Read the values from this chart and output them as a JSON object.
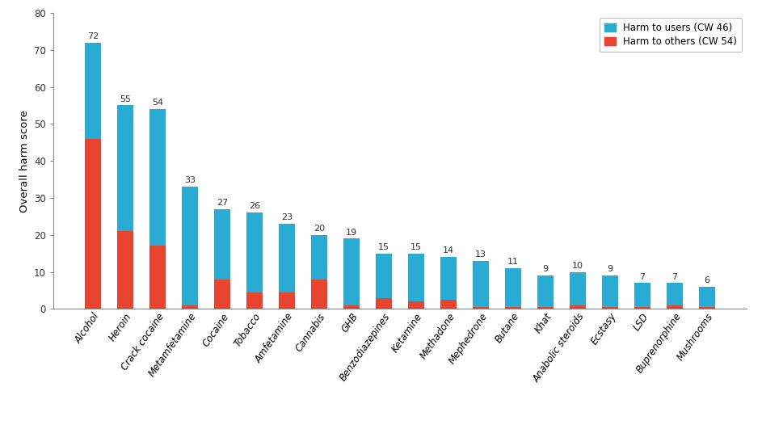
{
  "categories": [
    "Alcohol",
    "Heroin",
    "Crack cocaine",
    "Metamfetamine",
    "Cocaine",
    "Tobacco",
    "Amfetamine",
    "Cannabis",
    "GHB",
    "Benzodiazepines",
    "Ketamine",
    "Methadone",
    "Mephedrone",
    "Butane",
    "Khat",
    "Anabolic steroids",
    "Ecstasy",
    "LSD",
    "Buprenorphine",
    "Mushrooms"
  ],
  "totals": [
    72,
    55,
    54,
    33,
    27,
    26,
    23,
    20,
    19,
    15,
    15,
    14,
    13,
    11,
    9,
    10,
    9,
    7,
    7,
    6
  ],
  "harm_others": [
    46,
    21,
    17,
    1,
    8,
    4.5,
    4.5,
    8,
    1,
    3,
    2,
    2.5,
    0.5,
    0.5,
    0.5,
    1,
    0.5,
    0.5,
    1,
    0.5
  ],
  "color_users": "#29ABD4",
  "color_others": "#E84530",
  "ylabel": "Overall harm score",
  "ylim": [
    0,
    80
  ],
  "yticks": [
    0,
    10,
    20,
    30,
    40,
    50,
    60,
    70,
    80
  ],
  "legend_users": "Harm to users (CW 46)",
  "legend_others": "Harm to others (CW 54)",
  "label_fontsize": 8.5,
  "tick_fontsize": 8.5,
  "ylabel_fontsize": 9.5,
  "bar_width": 0.5,
  "annotation_fontsize": 8.0
}
